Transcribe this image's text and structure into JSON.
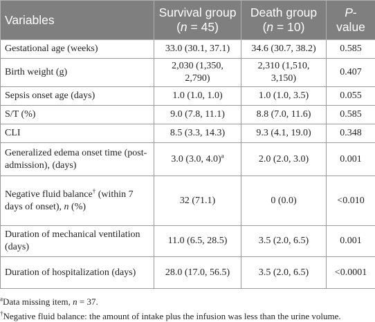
{
  "table": {
    "header": [
      [
        "Variables"
      ],
      [
        "Survival group (",
        "n",
        " = 45)"
      ],
      [
        "Death group (",
        "n",
        " = 10)"
      ],
      [
        "P",
        "-value"
      ]
    ],
    "rows": [
      [
        "Gestational age (weeks)",
        "33.0 (30.1, 37.1)",
        "34.6 (30.7, 38.2)",
        "0.585"
      ],
      [
        "Birth weight (g)",
        "2,030 (1,350, 2,790)",
        "2,310 (1,510, 3,150)",
        "0.407"
      ],
      [
        "Sepsis onset age (days)",
        "1.0 (1.0, 1.0)",
        "1.0 (1.0, 3.5)",
        "0.055"
      ],
      [
        "S/T (%)",
        "9.0 (7.8, 11.1)",
        "8.8 (7.0, 11.6)",
        "0.585"
      ],
      [
        "CLI",
        "8.5 (3.3, 14.3)",
        "9.3 (4.1, 19.0)",
        "0.348"
      ],
      [
        "Generalized edema onset time (post-admission), (days)",
        [
          "3.0 (3.0, 4.0)",
          "a"
        ],
        "2.0 (2.0, 3.0)",
        "0.001"
      ],
      [
        [
          "Negative fluid balance",
          "†",
          " (within 7 days of onset), ",
          "n",
          " (%)"
        ],
        "32 (71.1)",
        "0 (0.0)",
        "<0.010"
      ],
      [
        "Duration of mechanical ventilation (days)",
        "11.0 (6.5, 28.5)",
        "3.5 (2.0, 6.5)",
        "0.001"
      ],
      [
        "Duration of hospitalization (days)",
        "28.0 (17.0, 56.5)",
        "3.5 (2.0, 6.5)",
        "<0.0001"
      ]
    ]
  },
  "footnotes": [
    [
      "a",
      "Data missing item, ",
      "n",
      " = 37."
    ],
    [
      "†",
      "Negative fluid balance: the amount of intake plus the infusion was less than the urine volume."
    ]
  ]
}
